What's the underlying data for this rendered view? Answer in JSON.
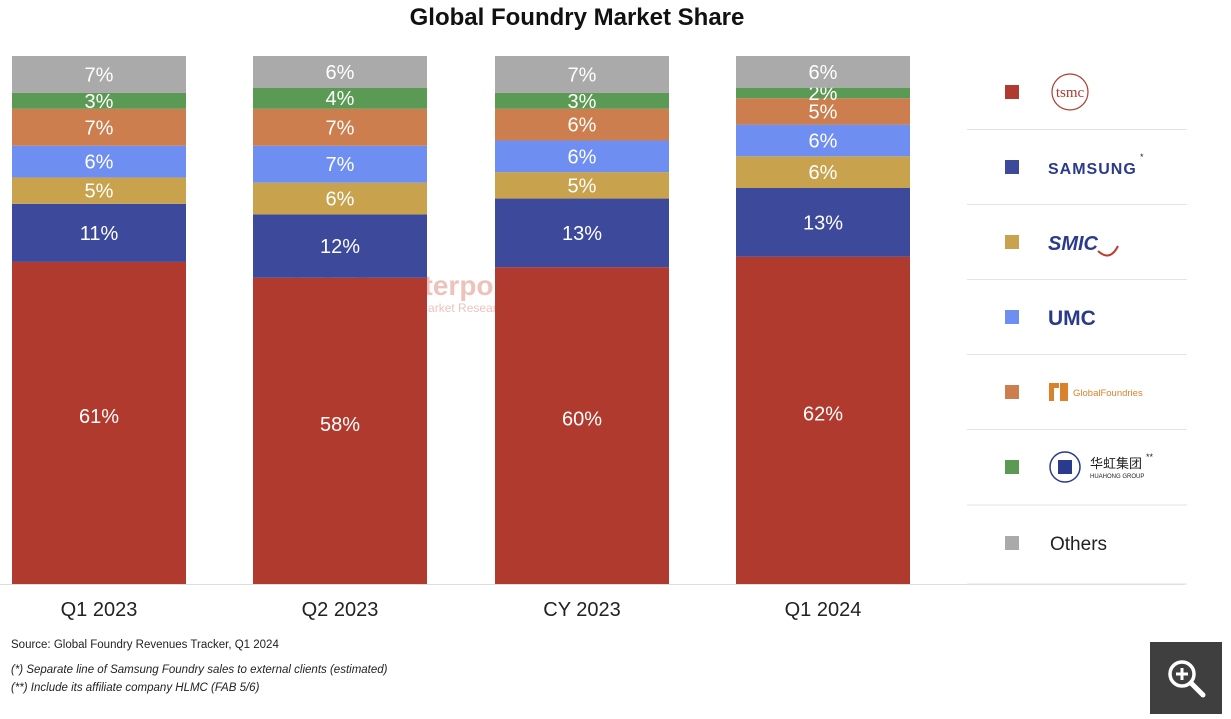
{
  "chart_data": {
    "type": "bar",
    "stacked": true,
    "title": "Global Foundry Market Share",
    "categories": [
      "Q1 2023",
      "Q2 2023",
      "CY 2023",
      "Q1 2024"
    ],
    "series": [
      {
        "name": "TSMC",
        "legend_label": "tsmc",
        "color": "#b03a2e",
        "values": [
          61,
          58,
          60,
          62
        ],
        "labels": [
          "61%",
          "58%",
          "60%",
          "62%"
        ]
      },
      {
        "name": "Samsung",
        "legend_label": "SAMSUNG",
        "legend_marker": "*",
        "color": "#3d4a9c",
        "values": [
          11,
          12,
          13,
          13
        ],
        "labels": [
          "11%",
          "12%",
          "13%",
          "13%"
        ]
      },
      {
        "name": "SMIC",
        "legend_label": "SMIC",
        "color": "#c9a24e",
        "values": [
          5,
          6,
          5,
          6
        ],
        "labels": [
          "5%",
          "6%",
          "5%",
          "6%"
        ]
      },
      {
        "name": "UMC",
        "legend_label": "UMC",
        "color": "#6e8ef2",
        "values": [
          6,
          7,
          6,
          6
        ],
        "labels": [
          "6%",
          "7%",
          "6%",
          "6%"
        ]
      },
      {
        "name": "GlobalFoundries",
        "legend_label": "GlobalFoundries",
        "color": "#cc7e4e",
        "values": [
          7,
          7,
          6,
          5
        ],
        "labels": [
          "7%",
          "7%",
          "6%",
          "5%"
        ]
      },
      {
        "name": "Hua Hong Group",
        "legend_label": "华虹集团",
        "legend_sublabel": "HUAHONG GROUP",
        "legend_marker": "**",
        "color": "#5b9a55",
        "values": [
          3,
          4,
          3,
          2
        ],
        "labels": [
          "3%",
          "4%",
          "3%",
          "2%"
        ]
      },
      {
        "name": "Others",
        "legend_label": "Others",
        "color": "#aaaaaa",
        "values": [
          7,
          6,
          7,
          6
        ],
        "labels": [
          "7%",
          "6%",
          "7%",
          "6%"
        ]
      }
    ],
    "ylim": [
      0,
      100
    ],
    "legend_position": "right",
    "grid": false
  },
  "watermark": {
    "name": "Counterpoint",
    "tagline": "Technology Market Research"
  },
  "source_note": "Source: Global Foundry Revenues Tracker, Q1 2024",
  "footnotes": [
    "(*) Separate line of Samsung Foundry sales to external clients (estimated)",
    "(**) Include its affiliate company HLMC (FAB 5/6)"
  ],
  "colors": {
    "zoom_bg": "#3f3f3f",
    "divider": "#e3e3e3"
  },
  "zoom_button": {
    "icon": "zoom-in-icon"
  }
}
